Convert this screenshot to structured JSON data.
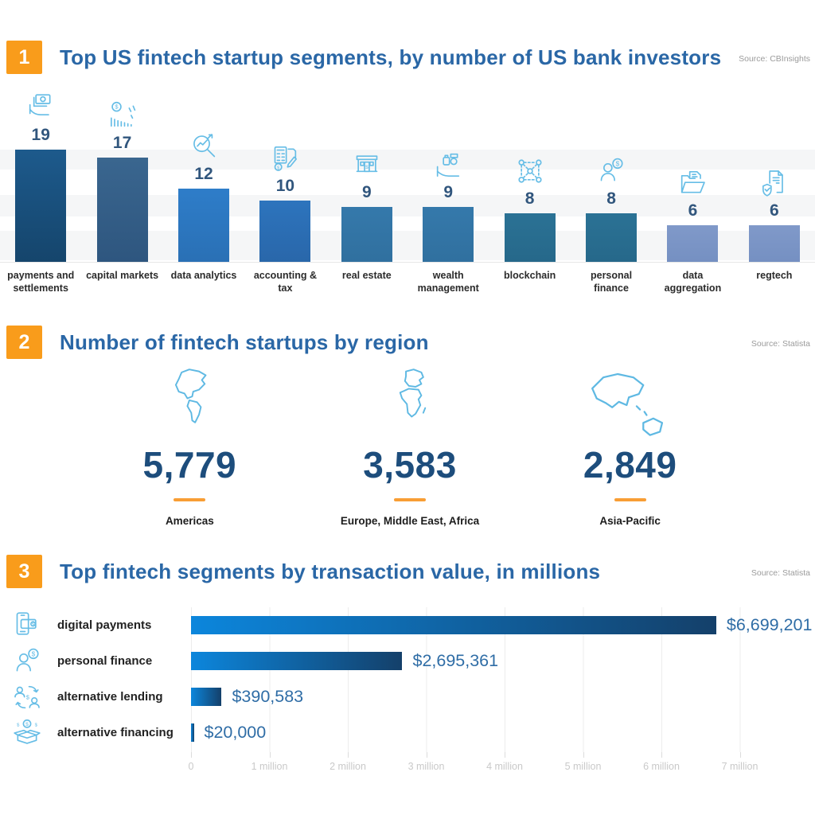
{
  "sections": [
    {
      "badge": "1",
      "title": "Top US fintech startup segments, by number of US bank investors",
      "source": "Source: CBInsights"
    },
    {
      "badge": "2",
      "title": "Number of fintech startups by region",
      "source": "Source: Statista"
    },
    {
      "badge": "3",
      "title": "Top fintech segments by transaction value, in millions",
      "source": "Source: Statista"
    }
  ],
  "chart_data": [
    {
      "type": "bar",
      "title": "Top US fintech startup segments, by number of US bank investors",
      "source": "Source: CBInsights",
      "categories": [
        "payments and settlements",
        "capital markets",
        "data analytics",
        "accounting & tax",
        "real estate",
        "wealth management",
        "blockchain",
        "personal finance",
        "data aggregation",
        "regtech"
      ],
      "values": [
        19,
        17,
        12,
        10,
        9,
        9,
        8,
        8,
        6,
        6
      ],
      "icons": [
        "hand-money",
        "declining-chart-coin",
        "magnifier-chart",
        "calculator-document",
        "bank-building",
        "hand-assets",
        "network-nodes",
        "person-dollar",
        "folder-document",
        "document-shield-check"
      ],
      "bar_colors": [
        [
          "#1d5a8c",
          "#15456c"
        ],
        [
          "#3a668f",
          "#2e567f"
        ],
        [
          "#2e7dc9",
          "#2a70b5"
        ],
        [
          "#2d74bd",
          "#2967aa"
        ],
        [
          "#3579ab",
          "#30709f"
        ],
        [
          "#3579ab",
          "#30709f"
        ],
        [
          "#2b7295",
          "#26688a"
        ],
        [
          "#2b7295",
          "#26688a"
        ],
        [
          "#8099c9",
          "#7590c2"
        ],
        [
          "#8099c9",
          "#7590c2"
        ]
      ],
      "ylim": [
        0,
        20
      ],
      "legend": "none",
      "grid": "subtle horizontal bands"
    },
    {
      "type": "stat",
      "title": "Number of fintech startups by region",
      "source": "Source: Statista",
      "items": [
        {
          "icon": "americas-map",
          "value": "5,779",
          "label": "Americas"
        },
        {
          "icon": "emea-map",
          "value": "3,583",
          "label": "Europe, Middle East, Africa"
        },
        {
          "icon": "apac-map",
          "value": "2,849",
          "label": "Asia-Pacific"
        }
      ],
      "accent_color": "#f89e35"
    },
    {
      "type": "bar",
      "orientation": "horizontal",
      "title": "Top fintech segments by transaction value, in millions",
      "source": "Source: Statista",
      "categories": [
        "digital payments",
        "personal finance",
        "alternative lending",
        "alternative financing"
      ],
      "values": [
        6699201,
        2695361,
        390583,
        20000
      ],
      "value_labels": [
        "$6,699,201",
        "$2,695,361",
        "$390,583",
        "$20,000"
      ],
      "icons": [
        "phone-wallet",
        "person-dollar",
        "people-exchange",
        "box-coins"
      ],
      "x_ticks": [
        "0",
        "1 million",
        "2 million",
        "3 million",
        "4 million",
        "5 million",
        "6 million",
        "7 million"
      ],
      "xlim": [
        0,
        7030000
      ],
      "bar_gradient": [
        "#0c86dc",
        "#14406a"
      ],
      "legend": "none",
      "grid": "vertical gridlines at each million"
    }
  ],
  "colors": {
    "accent_orange": "#f99c1b",
    "title_blue": "#2a67a6",
    "number_navy": "#1d4d7c",
    "icon_blue": "#66bde6",
    "source_gray": "#9b9b9b",
    "axis_label_gray": "#c9c9c9",
    "value_label_blue": "#2f6da6"
  }
}
